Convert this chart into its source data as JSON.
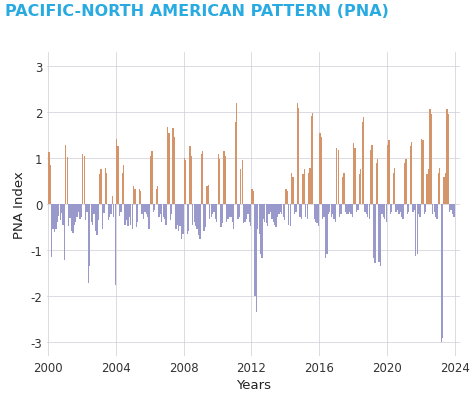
{
  "title": "PACIFIC-NORTH AMERICAN PATTERN (PNA)",
  "title_color": "#29ABE2",
  "xlabel": "Years",
  "ylabel": "PNA Index",
  "ylim": [
    -3.3,
    3.3
  ],
  "yticks": [
    -3,
    -2,
    -1,
    0,
    1,
    2,
    3
  ],
  "background_color": "#ffffff",
  "positive_color": "#D4956A",
  "negative_color": "#9999CC",
  "grid_color": "#d0d0d8",
  "xticks": [
    2000,
    2004,
    2008,
    2012,
    2016,
    2020,
    2024
  ],
  "start_year": 2000,
  "values": [
    1.13,
    0.85,
    -1.15,
    -0.55,
    -0.6,
    -0.55,
    -0.4,
    -0.25,
    -0.35,
    -0.2,
    -0.45,
    -1.22,
    1.28,
    1.02,
    -0.48,
    -0.3,
    -0.58,
    -0.62,
    -0.45,
    -0.38,
    -0.28,
    -0.18,
    -0.32,
    -0.28,
    1.08,
    1.05,
    -0.35,
    -0.18,
    -1.72,
    -1.35,
    -0.38,
    -0.45,
    -0.22,
    -0.58,
    -0.68,
    -0.35,
    0.65,
    0.75,
    -0.55,
    -0.2,
    0.78,
    0.68,
    -0.35,
    -0.28,
    -0.22,
    0.18,
    -0.28,
    -1.75,
    1.4,
    1.25,
    -0.25,
    -0.18,
    0.68,
    0.85,
    -0.45,
    -0.35,
    -0.48,
    -0.28,
    -0.45,
    -0.55,
    0.38,
    0.32,
    -0.5,
    -0.4,
    0.32,
    0.28,
    -0.22,
    -0.32,
    -0.18,
    -0.22,
    -0.28,
    -0.55,
    1.05,
    1.15,
    -0.18,
    -0.12,
    0.32,
    0.38,
    -0.28,
    -0.22,
    -0.38,
    -0.28,
    -0.32,
    -0.45,
    1.68,
    1.55,
    -0.35,
    -0.22,
    1.65,
    1.45,
    -0.55,
    -0.45,
    -0.58,
    -0.48,
    -0.75,
    -0.65,
    1.0,
    0.95,
    -0.65,
    -0.58,
    1.25,
    1.05,
    -0.45,
    -0.38,
    -0.48,
    -0.55,
    -0.68,
    -0.75,
    1.08,
    1.15,
    -0.58,
    -0.5,
    0.38,
    0.42,
    -0.32,
    -0.28,
    -0.22,
    -0.18,
    -0.32,
    -0.38,
    1.08,
    0.98,
    -0.5,
    -0.42,
    1.15,
    1.05,
    -0.38,
    -0.32,
    -0.28,
    -0.28,
    -0.38,
    -0.55,
    1.78,
    2.18,
    -0.32,
    -0.28,
    0.75,
    0.95,
    -0.42,
    -0.38,
    -0.32,
    -0.22,
    -0.38,
    -0.48,
    0.32,
    0.28,
    -2.0,
    -2.35,
    -0.55,
    -0.65,
    -1.08,
    -1.18,
    -0.32,
    -0.38,
    -0.42,
    -0.48,
    -0.22,
    -0.18,
    -0.32,
    -0.38,
    -0.45,
    -0.5,
    -0.28,
    -0.22,
    -0.18,
    -0.22,
    -0.28,
    -0.35,
    0.32,
    0.28,
    -0.45,
    -0.48,
    0.68,
    0.58,
    -0.22,
    -0.18,
    2.18,
    2.08,
    -0.28,
    -0.32,
    0.65,
    0.75,
    -0.28,
    -0.32,
    0.68,
    0.78,
    1.9,
    1.98,
    -0.32,
    -0.38,
    -0.42,
    -0.48,
    1.55,
    1.45,
    -0.32,
    -0.28,
    -1.18,
    -1.08,
    -0.22,
    -0.18,
    -0.28,
    -0.22,
    -0.32,
    -0.38,
    1.22,
    1.18,
    -0.28,
    -0.22,
    0.58,
    0.68,
    -0.18,
    -0.22,
    -0.22,
    -0.18,
    -0.22,
    -0.28,
    1.32,
    1.22,
    -0.18,
    -0.12,
    0.65,
    0.75,
    1.78,
    1.88,
    -0.18,
    -0.22,
    -0.28,
    -0.32,
    1.18,
    1.28,
    -1.18,
    -1.28,
    0.88,
    0.98,
    -1.25,
    -1.35,
    -0.22,
    -0.28,
    -0.32,
    -0.38,
    1.28,
    1.38,
    -0.22,
    -0.18,
    0.68,
    0.78,
    -0.18,
    -0.12,
    -0.22,
    -0.18,
    -0.28,
    -0.32,
    0.88,
    0.98,
    -0.22,
    -0.18,
    1.25,
    1.35,
    -0.18,
    -0.12,
    -1.12,
    -1.08,
    -0.22,
    -0.28,
    1.42,
    1.38,
    -0.22,
    -0.18,
    0.65,
    0.75,
    2.05,
    1.95,
    -0.22,
    -0.18,
    -0.28,
    -0.32,
    0.68,
    0.78,
    -3.0,
    -2.9,
    0.58,
    0.68,
    2.05,
    1.95,
    -0.18,
    -0.12,
    -0.22,
    -0.28
  ]
}
